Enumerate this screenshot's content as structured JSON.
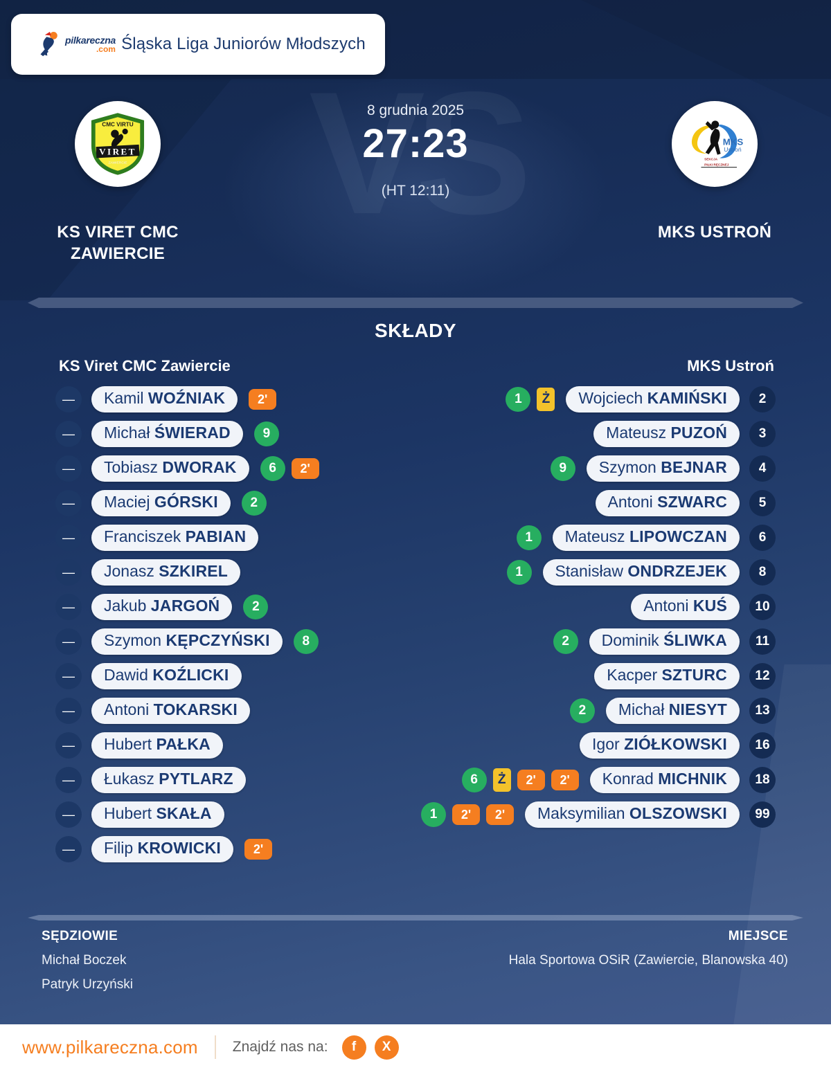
{
  "header": {
    "league": "Śląska Liga Juniorów Młodszych",
    "logo_text": "pilkareczna",
    "logo_tld": ".com"
  },
  "match": {
    "date": "8 grudnia 2025",
    "score": "27:23",
    "halftime": "(HT 12:11)",
    "vs": "VS",
    "home": {
      "name": "KS VIRET CMC ZAWIERCIE"
    },
    "away": {
      "name": "MKS USTROŃ"
    }
  },
  "lineups": {
    "title": "SKŁADY",
    "home_header": "KS Viret CMC Zawiercie",
    "away_header": "MKS Ustroń",
    "home_players": [
      {
        "first": "Kamil",
        "last": "WOŹNIAK",
        "number": "—",
        "badges": [
          {
            "type": "susp",
            "label": "2'"
          }
        ]
      },
      {
        "first": "Michał",
        "last": "ŚWIERAD",
        "number": "—",
        "badges": [
          {
            "type": "goal",
            "label": "9"
          }
        ]
      },
      {
        "first": "Tobiasz",
        "last": "DWORAK",
        "number": "—",
        "badges": [
          {
            "type": "goal",
            "label": "6"
          },
          {
            "type": "susp",
            "label": "2'"
          }
        ]
      },
      {
        "first": "Maciej",
        "last": "GÓRSKI",
        "number": "—",
        "badges": [
          {
            "type": "goal",
            "label": "2"
          }
        ]
      },
      {
        "first": "Franciszek",
        "last": "PABIAN",
        "number": "—",
        "badges": []
      },
      {
        "first": "Jonasz",
        "last": "SZKIREL",
        "number": "—",
        "badges": []
      },
      {
        "first": "Jakub",
        "last": "JARGOŃ",
        "number": "—",
        "badges": [
          {
            "type": "goal",
            "label": "2"
          }
        ]
      },
      {
        "first": "Szymon",
        "last": "KĘPCZYŃSKI",
        "number": "—",
        "badges": [
          {
            "type": "goal",
            "label": "8"
          }
        ]
      },
      {
        "first": "Dawid",
        "last": "KOŹLICKI",
        "number": "—",
        "badges": []
      },
      {
        "first": "Antoni",
        "last": "TOKARSKI",
        "number": "—",
        "badges": []
      },
      {
        "first": "Hubert",
        "last": "PAŁKA",
        "number": "—",
        "badges": []
      },
      {
        "first": "Łukasz",
        "last": "PYTLARZ",
        "number": "—",
        "badges": []
      },
      {
        "first": "Hubert",
        "last": "SKAŁA",
        "number": "—",
        "badges": []
      },
      {
        "first": "Filip",
        "last": "KROWICKI",
        "number": "—",
        "badges": [
          {
            "type": "susp",
            "label": "2'"
          }
        ]
      }
    ],
    "away_players": [
      {
        "first": "Wojciech",
        "last": "KAMIŃSKI",
        "number": "2",
        "badges": [
          {
            "type": "goal",
            "label": "1"
          },
          {
            "type": "yellow",
            "label": "Ż"
          }
        ]
      },
      {
        "first": "Mateusz",
        "last": "PUZOŃ",
        "number": "3",
        "badges": []
      },
      {
        "first": "Szymon",
        "last": "BEJNAR",
        "number": "4",
        "badges": [
          {
            "type": "goal",
            "label": "9"
          }
        ]
      },
      {
        "first": "Antoni",
        "last": "SZWARC",
        "number": "5",
        "badges": []
      },
      {
        "first": "Mateusz",
        "last": "LIPOWCZAN",
        "number": "6",
        "badges": [
          {
            "type": "goal",
            "label": "1"
          }
        ]
      },
      {
        "first": "Stanisław",
        "last": "ONDRZEJEK",
        "number": "8",
        "badges": [
          {
            "type": "goal",
            "label": "1"
          }
        ]
      },
      {
        "first": "Antoni",
        "last": "KUŚ",
        "number": "10",
        "badges": []
      },
      {
        "first": "Dominik",
        "last": "ŚLIWKA",
        "number": "11",
        "badges": [
          {
            "type": "goal",
            "label": "2"
          }
        ]
      },
      {
        "first": "Kacper",
        "last": "SZTURC",
        "number": "12",
        "badges": []
      },
      {
        "first": "Michał",
        "last": "NIESYT",
        "number": "13",
        "badges": [
          {
            "type": "goal",
            "label": "2"
          }
        ]
      },
      {
        "first": "Igor",
        "last": "ZIÓŁKOWSKI",
        "number": "16",
        "badges": []
      },
      {
        "first": "Konrad",
        "last": "MICHNIK",
        "number": "18",
        "badges": [
          {
            "type": "goal",
            "label": "6"
          },
          {
            "type": "yellow",
            "label": "Ż"
          },
          {
            "type": "susp",
            "label": "2'"
          },
          {
            "type": "susp",
            "label": "2'"
          }
        ]
      },
      {
        "first": "Maksymilian",
        "last": "OLSZOWSKI",
        "number": "99",
        "badges": [
          {
            "type": "goal",
            "label": "1"
          },
          {
            "type": "susp",
            "label": "2'"
          },
          {
            "type": "susp",
            "label": "2'"
          }
        ]
      }
    ]
  },
  "footer": {
    "referees_title": "SĘDZIOWIE",
    "referees": [
      "Michał Boczek",
      "Patryk Urzyński"
    ],
    "venue_title": "MIEJSCE",
    "venue": "Hala Sportowa OSiR (Zawiercie, Blanowska 40)"
  },
  "bottom": {
    "website": "www.pilkareczna.com",
    "find_us": "Znajdź nas na:",
    "social": [
      {
        "name": "facebook",
        "glyph": "f"
      },
      {
        "name": "x",
        "glyph": "X"
      }
    ]
  },
  "colors": {
    "accent_orange": "#f57e20",
    "goal_green": "#27ae60",
    "yellow_card": "#f3c22b",
    "navy_text": "#1b3a72",
    "pill_bg": "#f1f4f9"
  }
}
